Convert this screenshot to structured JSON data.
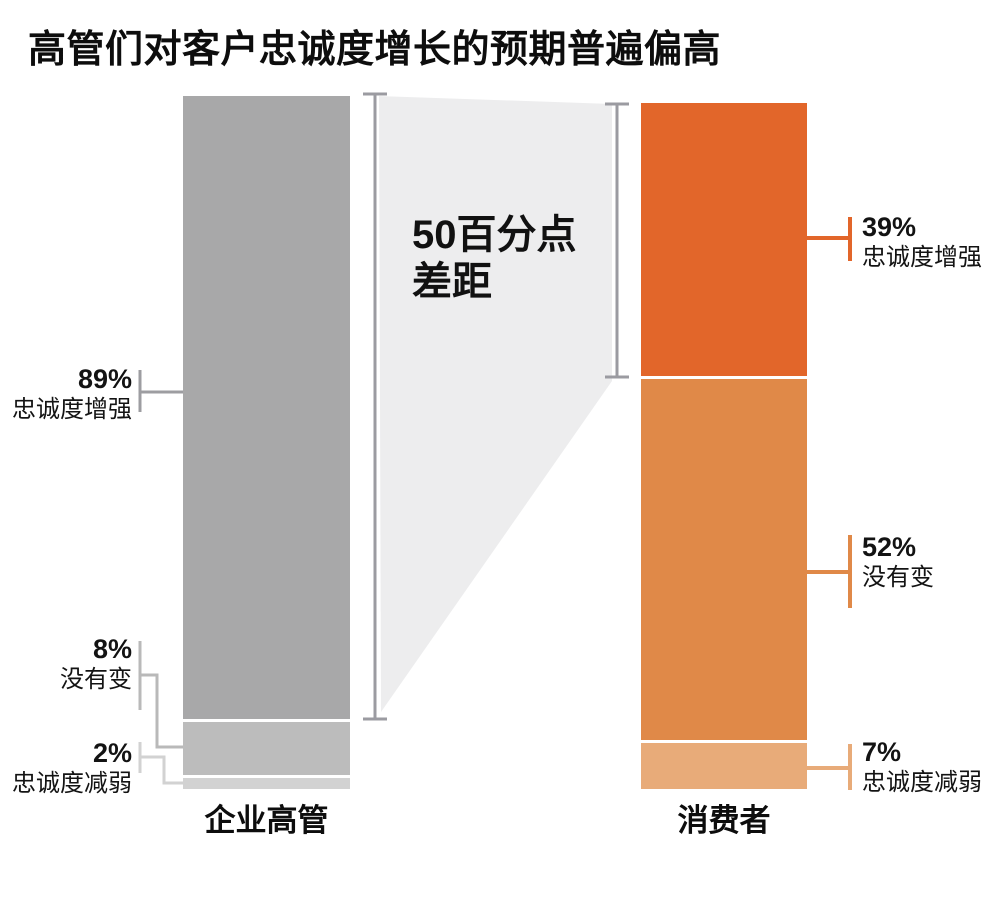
{
  "title": "高管们对客户忠诚度增长的预期普遍偏高",
  "gap_annotation": {
    "line1": "50百分点",
    "line2": "差距"
  },
  "colors": {
    "background": "#ffffff",
    "wedge": "#ededee",
    "measure_line": "#9b9ba1",
    "text": "#111111"
  },
  "bars": [
    {
      "label": "企业高管",
      "segments": [
        {
          "value": 89,
          "value_label": "89%",
          "name": "忠诚度增强",
          "color": "#a8a8a9",
          "connector_color": "#9d9da1"
        },
        {
          "value": 8,
          "value_label": "8%",
          "name": "没有变",
          "color": "#bcbcbc",
          "connector_color": "#b9b9b9"
        },
        {
          "value": 2,
          "value_label": "2%",
          "name": "忠诚度减弱",
          "color": "#d2d2d2",
          "connector_color": "#d2d2d2"
        }
      ]
    },
    {
      "label": "消费者",
      "segments": [
        {
          "value": 39,
          "value_label": "39%",
          "name": "忠诚度增强",
          "color": "#e2662a",
          "connector_color": "#e2662a"
        },
        {
          "value": 52,
          "value_label": "52%",
          "name": "没有变",
          "color": "#e08948",
          "connector_color": "#e08948"
        },
        {
          "value": 7,
          "value_label": "7%",
          "name": "忠诚度减弱",
          "color": "#e8ab79",
          "connector_color": "#e8ab79"
        }
      ]
    }
  ],
  "chart_data": {
    "type": "bar",
    "subtype": "stacked_percentage_comparison",
    "title": "高管们对客户忠诚度增长的预期普遍偏高",
    "categories": [
      "企业高管",
      "消费者"
    ],
    "series": [
      {
        "name": "忠诚度增强",
        "values": [
          89,
          39
        ]
      },
      {
        "name": "没有变",
        "values": [
          8,
          52
        ]
      },
      {
        "name": "忠诚度减弱",
        "values": [
          2,
          7
        ]
      }
    ],
    "annotation": "50百分点差距",
    "gap_points": 50,
    "unit": "percent",
    "grid": false,
    "legend_position": "none"
  }
}
